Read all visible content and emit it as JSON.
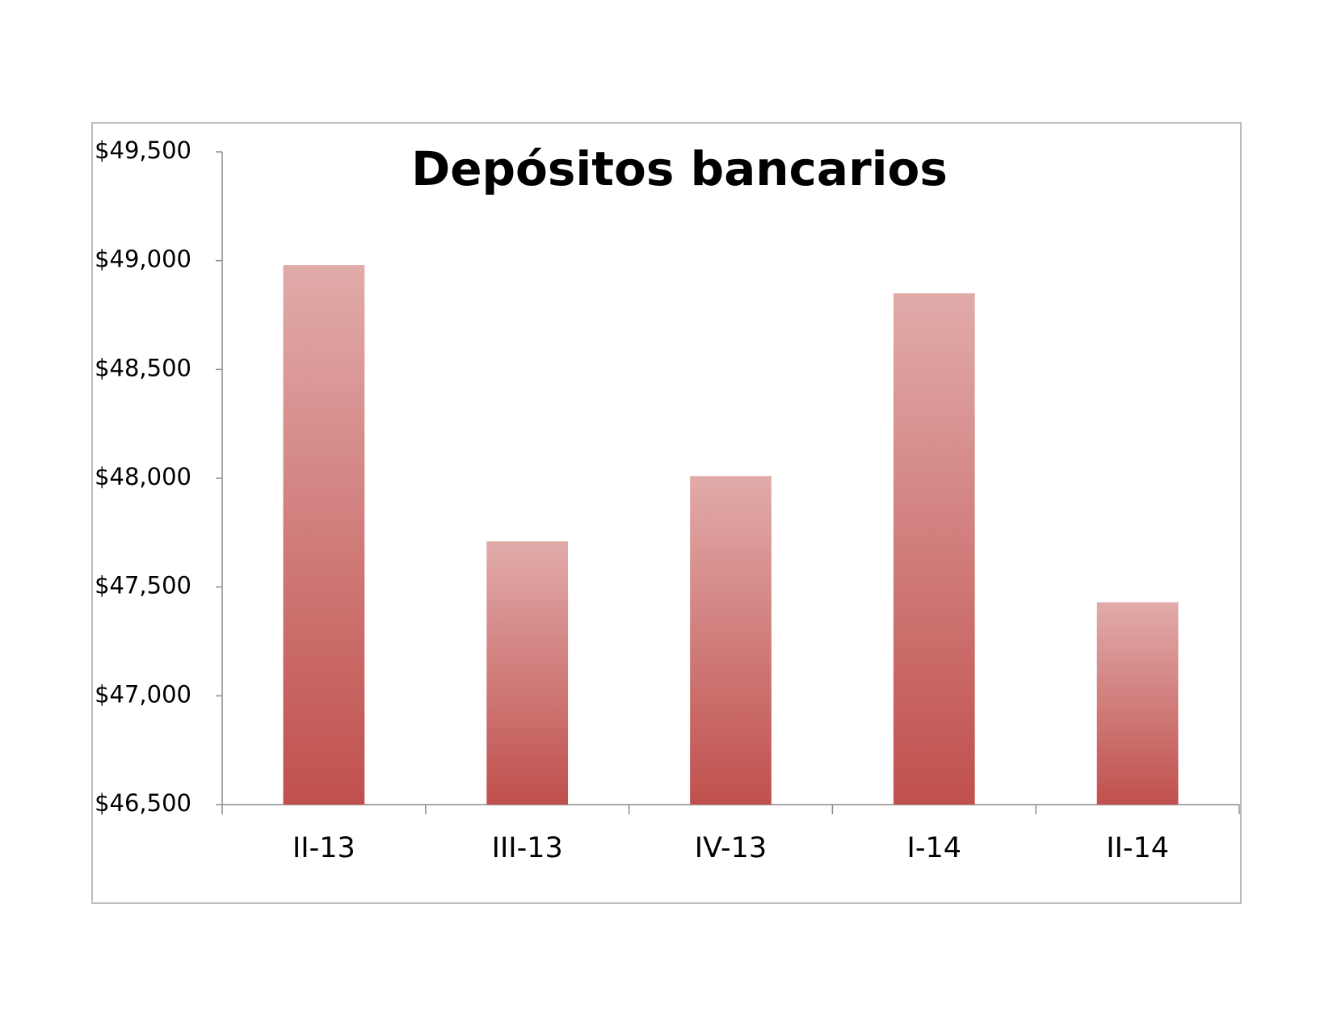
{
  "chart_data": {
    "type": "bar",
    "title": "Depósitos bancarios",
    "categories": [
      "II-13",
      "III-13",
      "IV-13",
      "I-14",
      "II-14"
    ],
    "values": [
      48980,
      47710,
      48010,
      48850,
      47430
    ],
    "color": "#c0504d",
    "ylim": [
      46500,
      49500
    ],
    "yticks": [
      {
        "value": 46500,
        "label": "$46,500"
      },
      {
        "value": 47000,
        "label": "$47,000"
      },
      {
        "value": 47500,
        "label": "$47,500"
      },
      {
        "value": 48000,
        "label": "$48,000"
      },
      {
        "value": 48500,
        "label": "$48,500"
      },
      {
        "value": 49000,
        "label": "$49,000"
      },
      {
        "value": 49500,
        "label": "$49,500"
      }
    ],
    "grid": false
  }
}
